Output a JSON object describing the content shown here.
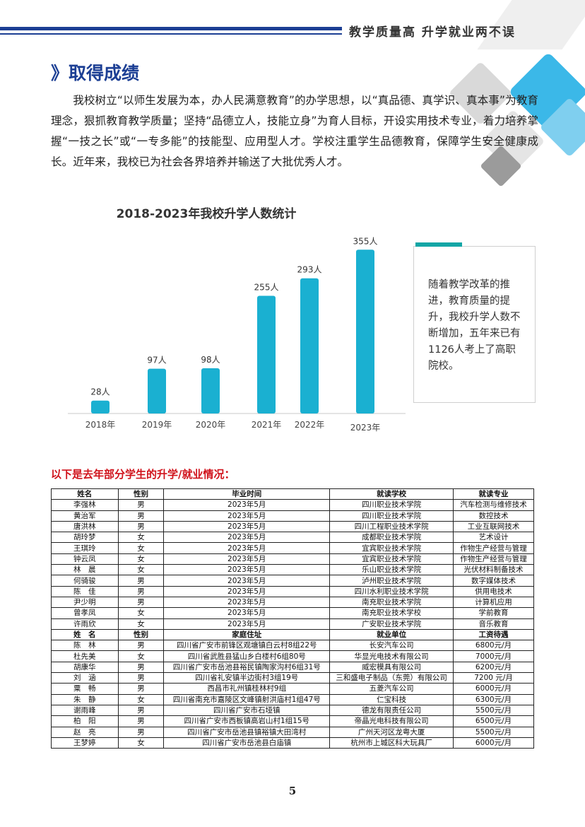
{
  "header": {
    "slogan": "教学质量高  升学就业两不误"
  },
  "section": {
    "marker": "》",
    "title": "取得成绩"
  },
  "intro": "我校树立“以师生发展为本，办人民满意教育”的办学思想，以“真品德、真学识、真本事”为教育理念，狠抓教育教学质量；坚持“品德立人，技能立身”为育人目标，开设实用技术专业，着力培养掌握“一技之长”或“一专多能”的技能型、应用型人才。学校注重学生品德教育，保障学生安全健康成长。近年来，我校已为社会各界培养并输送了大批优秀人才。",
  "chart_data": {
    "type": "bar",
    "title": "2018-2023年我校升学人数统计",
    "categories": [
      "2018年",
      "2019年",
      "2020年",
      "2021年",
      "2022年",
      "2023年"
    ],
    "values": [
      28,
      97,
      98,
      255,
      293,
      355
    ],
    "labels": [
      "28人",
      "97人",
      "98人",
      "255人",
      "293人",
      "355人"
    ],
    "ylim": [
      0,
      360
    ],
    "color": "#1ab0d1",
    "grid": false,
    "legend": "none"
  },
  "callout": {
    "text": "随着教学改革的推进，教育质量的提升，我校升学人数不断增加，五年来已有1126人考上了高职院校。"
  },
  "list_title": "以下是去年部分学生的升学/就业情况：",
  "table1": {
    "headers": [
      "姓名",
      "性别",
      "毕业时间",
      "就读学校",
      "就读专业"
    ],
    "rows": [
      [
        "李强林",
        "男",
        "2023年5月",
        "四川职业技术学院",
        "汽车检测与维修技术"
      ],
      [
        "黄治军",
        "男",
        "2023年5月",
        "四川职业技术学院",
        "数控技术"
      ],
      [
        "唐洪林",
        "男",
        "2023年5月",
        "四川工程职业技术学院",
        "工业互联网技术"
      ],
      [
        "胡玲梦",
        "女",
        "2023年5月",
        "成都职业技术学院",
        "艺术设计"
      ],
      [
        "王琪玲",
        "女",
        "2023年5月",
        "宜宾职业技术学院",
        "作物生产经营与管理"
      ],
      [
        "钟云凤",
        "女",
        "2023年5月",
        "宜宾职业技术学院",
        "作物生产经营与管理"
      ],
      [
        "林　晨",
        "女",
        "2023年5月",
        "乐山职业技术学院",
        "光伏材料制备技术"
      ],
      [
        "何骑骏",
        "男",
        "2023年5月",
        "泸州职业技术学院",
        "数字媒体技术"
      ],
      [
        "陈　佳",
        "男",
        "2023年5月",
        "四川水利职业技术学院",
        "供用电技术"
      ],
      [
        "尹少明",
        "男",
        "2023年5月",
        "南充职业技术学院",
        "计算机应用"
      ],
      [
        "曾孝凤",
        "女",
        "2023年5月",
        "南充职业技术学校",
        "学前教育"
      ],
      [
        "许雨欣",
        "女",
        "2023年5月",
        "广安职业技术学院",
        "音乐教育"
      ]
    ]
  },
  "table2": {
    "headers": [
      "姓　名",
      "性别",
      "家庭住址",
      "就业单位",
      "工资待遇"
    ],
    "rows": [
      [
        "陈　林",
        "男",
        "四川省广安市前锋区观塘镇白云村8组22号",
        "长安汽车公司",
        "6800元/月"
      ],
      [
        "杜先美",
        "女",
        "四川省武胜县猛山乡白楼村6组80号",
        "华显光电技术有限公司",
        "7000元/月"
      ],
      [
        "胡康华",
        "男",
        "四川省广安市岳池县裕民镇陶家沟村6组31号",
        "威宏模具有限公司",
        "6200元/月"
      ],
      [
        "刘　涵",
        "男",
        "四川省礼安镇半边街村3组19号",
        "三和盛电子制品（东莞）有限公司",
        "7200 元/月"
      ],
      [
        "粟　畅",
        "男",
        "西昌市礼州镇桂林村9组",
        "五菱汽车公司",
        "6000元/月"
      ],
      [
        "朱　静",
        "女",
        "四川省南充市嘉陵区文峰镇射洪庙村1组47号",
        "仁宝科技",
        "6300元/月"
      ],
      [
        "谢雨峰",
        "男",
        "四川省广安市石垭镇",
        "德龙有限责任公司",
        "5500元/月"
      ],
      [
        "柏　阳",
        "男",
        "四川省广安市西板镇高岩山村1组15号",
        "帝晶光电科技有限公司",
        "6500元/月"
      ],
      [
        "赵　亮",
        "男",
        "四川省广安市岳池县镇裕镇大田湾村",
        "广州天河区龙粤大厦",
        "5500元/月"
      ],
      [
        "王梦婷",
        "女",
        "四川省广安市岳池县白庙镇",
        "杭州市上城区科大玩具厂",
        "6000元/月"
      ]
    ]
  },
  "page_number": "5"
}
